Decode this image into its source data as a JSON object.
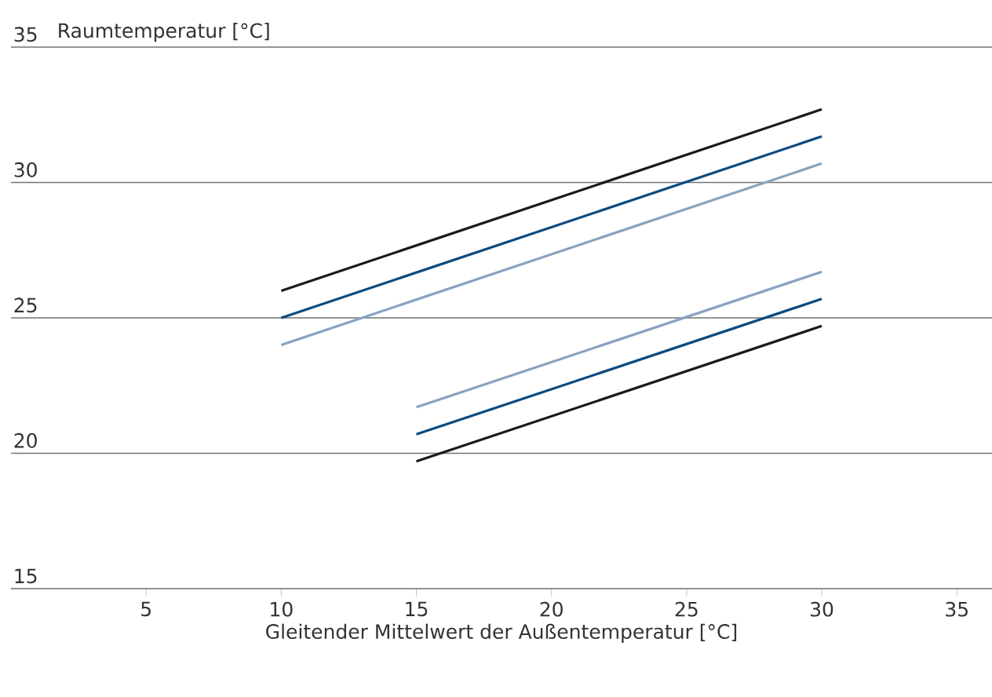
{
  "chart_data": {
    "type": "line",
    "ylabel": "Raumtemperatur [°C]",
    "xlabel": "Gleitender Mittelwert der Außentemperatur [°C]",
    "xlim": [
      0,
      36.3
    ],
    "xticks": [
      5,
      10,
      15,
      20,
      25,
      30,
      35
    ],
    "ylim": [
      15,
      35
    ],
    "yticks": [
      15,
      20,
      25,
      30,
      35
    ],
    "grid": "y",
    "marker": "none",
    "line_style": "solid",
    "series": [
      {
        "color": "#1a1a1a",
        "x": [
          10,
          30
        ],
        "values": [
          26,
          32.7
        ]
      },
      {
        "color": "#0b4a7e",
        "x": [
          10,
          30
        ],
        "values": [
          25,
          31.7
        ]
      },
      {
        "color": "#87a3bf",
        "x": [
          10,
          30
        ],
        "values": [
          24,
          30.7
        ]
      },
      {
        "color": "#87a3bf",
        "x": [
          15,
          30
        ],
        "values": [
          21.7,
          26.7
        ]
      },
      {
        "color": "#0b4a7e",
        "x": [
          15,
          30
        ],
        "values": [
          20.7,
          25.7
        ]
      },
      {
        "color": "#1a1a1a",
        "x": [
          15,
          30
        ],
        "values": [
          19.7,
          24.7
        ]
      }
    ]
  }
}
